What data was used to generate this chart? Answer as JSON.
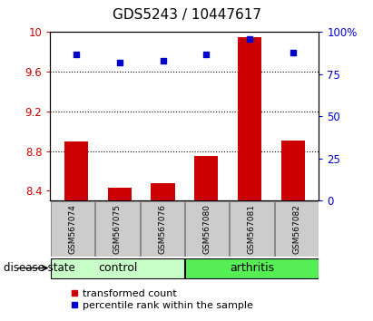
{
  "title": "GDS5243 / 10447617",
  "samples": [
    "GSM567074",
    "GSM567075",
    "GSM567076",
    "GSM567080",
    "GSM567081",
    "GSM567082"
  ],
  "transformed_counts": [
    8.9,
    8.43,
    8.48,
    8.75,
    9.95,
    8.91
  ],
  "percentile_ranks": [
    87,
    82,
    83,
    87,
    96,
    88
  ],
  "groups": [
    "control",
    "control",
    "control",
    "arthritis",
    "arthritis",
    "arthritis"
  ],
  "ylim_left": [
    8.3,
    10.0
  ],
  "ylim_right": [
    0,
    100
  ],
  "yticks_left": [
    8.4,
    8.8,
    9.2,
    9.6,
    10.0
  ],
  "ytick_labels_left": [
    "8.4",
    "8.8",
    "9.2",
    "9.6",
    "10"
  ],
  "yticks_right": [
    0,
    25,
    50,
    75,
    100
  ],
  "ytick_labels_right": [
    "0",
    "25",
    "50",
    "75",
    "100%"
  ],
  "hlines": [
    8.8,
    9.2,
    9.6
  ],
  "bar_color": "#cc0000",
  "scatter_color": "#0000cc",
  "control_color": "#c8ffc8",
  "arthritis_color": "#55ee55",
  "sample_bg_color": "#cccccc",
  "bar_width": 0.55,
  "title_fontsize": 11,
  "tick_fontsize": 8.5,
  "label_fontsize": 8.5,
  "legend_fontsize": 8,
  "group_label_fontsize": 9,
  "sample_label_fontsize": 6.5
}
